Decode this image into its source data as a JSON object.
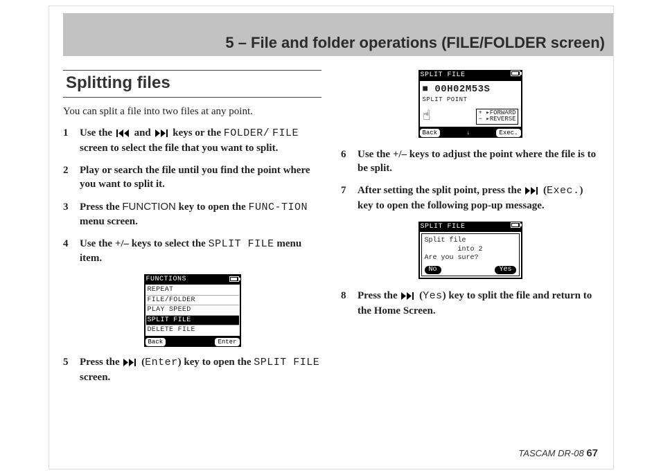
{
  "header": {
    "chapter_title": "5 – File and folder operations (FILE/FOLDER screen)"
  },
  "section": {
    "title": "Splitting files"
  },
  "intro": "You can split a file into two files at any point.",
  "steps": {
    "s1_a": "Use the ",
    "s1_b": " and ",
    "s1_c": " keys or the ",
    "s1_mono1": "FOLDER/",
    "s1_mono2": "FILE",
    "s1_d": " screen to select the file that you want to split.",
    "s2": "Play or search the file until you find the point where you want to split it.",
    "s3_a": "Press the ",
    "s3_key": "FUNCTION",
    "s3_b": " key to open the ",
    "s3_mono": "FUNC-TION",
    "s3_c": " menu screen.",
    "s4_a": "Use the +/– keys to select the ",
    "s4_mono": "SPLIT FILE",
    "s4_b": " menu item.",
    "s5_a": "Press the ",
    "s5_b": " (",
    "s5_mono1": "Enter",
    "s5_c": ") key to open the ",
    "s5_mono2": "SPLIT FILE",
    "s5_d": " screen.",
    "s6": "Use the +/– keys to adjust the point where the file is to be split.",
    "s7_a": "After setting the split point, press the ",
    "s7_b": " (",
    "s7_mono": "Exec.",
    "s7_c": ") key to open the following pop-up message.",
    "s8_a": "Press the ",
    "s8_b": " (",
    "s8_mono": "Yes",
    "s8_c": ") key to split the file and return to the Home Screen."
  },
  "lcd_functions": {
    "title": "FUNCTIONS",
    "rows": [
      "REPEAT",
      "FILE/FOLDER",
      "PLAY SPEED",
      "SPLIT FILE",
      "DELETE FILE"
    ],
    "selected_index": 3,
    "footer_left": "Back",
    "footer_right": "Enter"
  },
  "lcd_split": {
    "title": "SPLIT FILE",
    "time": "00H02M53S",
    "sub": "SPLIT POINT",
    "forward": "+ ▸FORWARD",
    "reverse": "− ▸REVERSE",
    "footer_left": "Back",
    "footer_mid": "↓",
    "footer_right": "Exec."
  },
  "lcd_confirm": {
    "title": "SPLIT FILE",
    "line1": "Split file",
    "line2": "into 2",
    "line3": "Are you sure?",
    "footer_left": "No",
    "footer_right": "Yes"
  },
  "footer": {
    "model": "TASCAM  DR-08",
    "page": "67"
  },
  "colors": {
    "header_band": "#c2c2c2",
    "text": "#222222",
    "rule": "#444444"
  }
}
